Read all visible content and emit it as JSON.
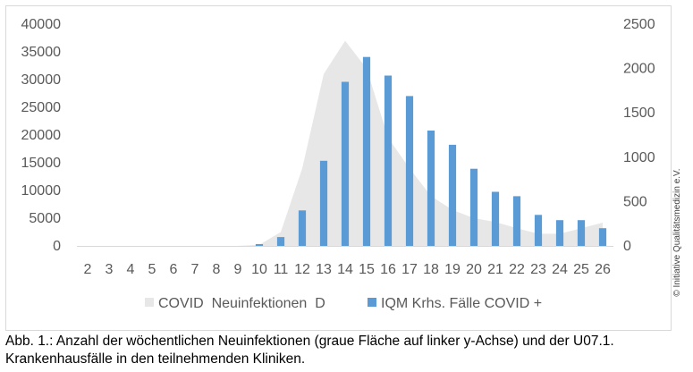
{
  "chart_data": {
    "type": "bar+area",
    "title": "",
    "categories": [
      "2",
      "3",
      "4",
      "5",
      "6",
      "7",
      "8",
      "9",
      "10",
      "11",
      "12",
      "13",
      "14",
      "15",
      "16",
      "17",
      "18",
      "19",
      "20",
      "21",
      "22",
      "23",
      "24",
      "25",
      "26"
    ],
    "series": [
      {
        "name": "COVID  Neuinfektionen  D",
        "type": "area",
        "axis": "left",
        "color": "#e7e7e7",
        "values": [
          0,
          0,
          0,
          0,
          0,
          0,
          0,
          0,
          200,
          2500,
          14000,
          31000,
          37000,
          32000,
          19500,
          14000,
          9000,
          6500,
          5000,
          4300,
          3200,
          2200,
          2200,
          3200,
          4200
        ]
      },
      {
        "name": "IQM Krhs. Fälle COVID +",
        "type": "bar",
        "axis": "right",
        "color": "#5b9bd5",
        "values": [
          0,
          0,
          0,
          0,
          0,
          0,
          0,
          0,
          20,
          100,
          400,
          960,
          1850,
          2130,
          1920,
          1690,
          1300,
          1140,
          870,
          610,
          560,
          350,
          290,
          290,
          200
        ]
      }
    ],
    "left_axis": {
      "ticks": [
        "0",
        "5000",
        "10000",
        "15000",
        "20000",
        "25000",
        "30000",
        "35000",
        "40000"
      ],
      "range": [
        0,
        40000
      ]
    },
    "right_axis": {
      "ticks": [
        "0",
        "500",
        "1000",
        "1500",
        "2000",
        "2500"
      ],
      "range": [
        0,
        2500
      ]
    },
    "legend_position": "bottom",
    "grid": false
  },
  "credit": "© Initiative Qualitätsmedizin e.V.",
  "caption": {
    "line1": "Abb. 1.: Anzahl der wöchentlichen Neuinfektionen (graue Fläche auf linker y-Achse) und der U07.1.",
    "line2": "Krankenhausfälle in den teilnehmenden Kliniken."
  }
}
